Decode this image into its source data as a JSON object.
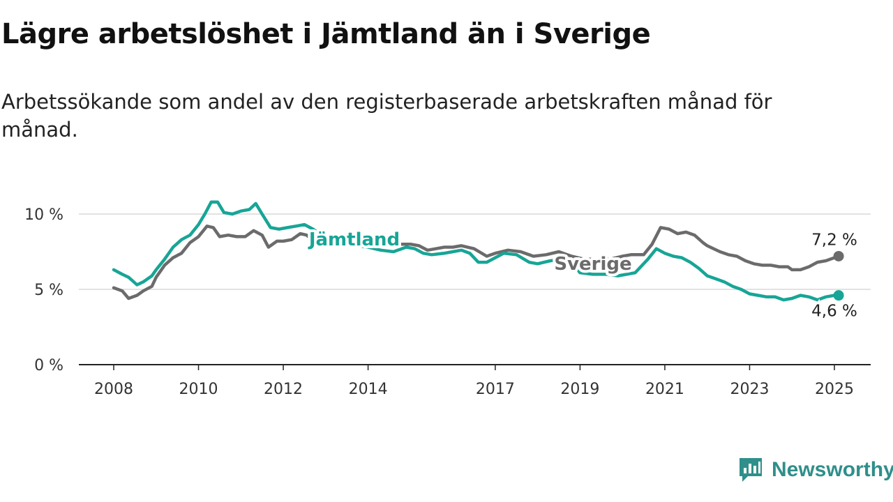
{
  "header": {
    "title": "Lägre arbetslöshet i Jämtland än i Sverige",
    "subtitle": "Arbetssökande som andel av den registerbaserade arbetskraften månad för månad."
  },
  "brand": {
    "name": "Newsworthy",
    "color": "#2f8f8a"
  },
  "chart_data": {
    "type": "line",
    "title": "Lägre arbetslöshet i Jämtland än i Sverige",
    "subtitle": "Arbetssökande som andel av den registerbaserade arbetskraften månad för månad.",
    "xlabel": "",
    "ylabel": "",
    "xlim": [
      2008,
      2025.1
    ],
    "ylim": [
      0,
      10
    ],
    "x_ticks": [
      2008,
      2010,
      2012,
      2014,
      2017,
      2019,
      2021,
      2023,
      2025
    ],
    "y_ticks": [
      {
        "value": 0,
        "label": "0 %"
      },
      {
        "value": 5,
        "label": "5 %"
      },
      {
        "value": 10,
        "label": "10 %"
      }
    ],
    "grid": true,
    "series": [
      {
        "name": "Sverige",
        "color": "#6b6b6b",
        "end_label": "7,2 %",
        "points": [
          [
            2008.0,
            5.1
          ],
          [
            2008.2,
            4.9
          ],
          [
            2008.35,
            4.4
          ],
          [
            2008.55,
            4.6
          ],
          [
            2008.7,
            4.9
          ],
          [
            2008.9,
            5.2
          ],
          [
            2009.0,
            5.8
          ],
          [
            2009.2,
            6.6
          ],
          [
            2009.4,
            7.1
          ],
          [
            2009.6,
            7.4
          ],
          [
            2009.8,
            8.1
          ],
          [
            2010.0,
            8.5
          ],
          [
            2010.2,
            9.2
          ],
          [
            2010.35,
            9.1
          ],
          [
            2010.5,
            8.5
          ],
          [
            2010.7,
            8.6
          ],
          [
            2010.9,
            8.5
          ],
          [
            2011.1,
            8.5
          ],
          [
            2011.3,
            8.9
          ],
          [
            2011.5,
            8.6
          ],
          [
            2011.65,
            7.8
          ],
          [
            2011.85,
            8.2
          ],
          [
            2012.0,
            8.2
          ],
          [
            2012.2,
            8.3
          ],
          [
            2012.4,
            8.7
          ],
          [
            2012.55,
            8.6
          ],
          [
            2012.8,
            8.0
          ],
          [
            2013.0,
            8.2
          ],
          [
            2013.3,
            8.3
          ],
          [
            2013.6,
            8.3
          ],
          [
            2014.0,
            8.1
          ],
          [
            2014.3,
            7.9
          ],
          [
            2014.6,
            8.0
          ],
          [
            2015.0,
            8.0
          ],
          [
            2015.2,
            7.9
          ],
          [
            2015.4,
            7.6
          ],
          [
            2015.6,
            7.7
          ],
          [
            2015.8,
            7.8
          ],
          [
            2016.0,
            7.8
          ],
          [
            2016.2,
            7.9
          ],
          [
            2016.5,
            7.7
          ],
          [
            2016.8,
            7.2
          ],
          [
            2017.0,
            7.4
          ],
          [
            2017.3,
            7.6
          ],
          [
            2017.6,
            7.5
          ],
          [
            2017.9,
            7.2
          ],
          [
            2018.2,
            7.3
          ],
          [
            2018.5,
            7.5
          ],
          [
            2018.8,
            7.2
          ],
          [
            2019.1,
            7.0
          ],
          [
            2019.4,
            7.0
          ],
          [
            2019.7,
            7.0
          ],
          [
            2020.0,
            7.2
          ],
          [
            2020.2,
            7.3
          ],
          [
            2020.5,
            7.3
          ],
          [
            2020.7,
            8.0
          ],
          [
            2020.9,
            9.1
          ],
          [
            2021.1,
            9.0
          ],
          [
            2021.3,
            8.7
          ],
          [
            2021.5,
            8.8
          ],
          [
            2021.7,
            8.6
          ],
          [
            2021.9,
            8.1
          ],
          [
            2022.0,
            7.9
          ],
          [
            2022.3,
            7.5
          ],
          [
            2022.5,
            7.3
          ],
          [
            2022.7,
            7.2
          ],
          [
            2022.9,
            6.9
          ],
          [
            2023.1,
            6.7
          ],
          [
            2023.3,
            6.6
          ],
          [
            2023.5,
            6.6
          ],
          [
            2023.7,
            6.5
          ],
          [
            2023.9,
            6.5
          ],
          [
            2024.0,
            6.3
          ],
          [
            2024.2,
            6.3
          ],
          [
            2024.4,
            6.5
          ],
          [
            2024.6,
            6.8
          ],
          [
            2024.8,
            6.9
          ],
          [
            2025.0,
            7.1
          ],
          [
            2025.1,
            7.2
          ]
        ]
      },
      {
        "name": "Jämtland",
        "color": "#17a596",
        "end_label": "4,6 %",
        "points": [
          [
            2008.0,
            6.3
          ],
          [
            2008.2,
            6.0
          ],
          [
            2008.35,
            5.8
          ],
          [
            2008.55,
            5.3
          ],
          [
            2008.7,
            5.5
          ],
          [
            2008.9,
            5.9
          ],
          [
            2009.0,
            6.3
          ],
          [
            2009.2,
            7.0
          ],
          [
            2009.4,
            7.8
          ],
          [
            2009.6,
            8.3
          ],
          [
            2009.8,
            8.6
          ],
          [
            2010.0,
            9.3
          ],
          [
            2010.15,
            10.0
          ],
          [
            2010.3,
            10.8
          ],
          [
            2010.45,
            10.8
          ],
          [
            2010.6,
            10.1
          ],
          [
            2010.8,
            10.0
          ],
          [
            2011.0,
            10.2
          ],
          [
            2011.2,
            10.3
          ],
          [
            2011.35,
            10.7
          ],
          [
            2011.5,
            10.0
          ],
          [
            2011.7,
            9.1
          ],
          [
            2011.9,
            9.0
          ],
          [
            2012.1,
            9.1
          ],
          [
            2012.3,
            9.2
          ],
          [
            2012.5,
            9.3
          ],
          [
            2012.7,
            9.0
          ],
          [
            2012.9,
            8.6
          ],
          [
            2013.1,
            8.2
          ],
          [
            2013.4,
            8.0
          ],
          [
            2013.7,
            7.9
          ],
          [
            2014.0,
            7.8
          ],
          [
            2014.3,
            7.6
          ],
          [
            2014.6,
            7.5
          ],
          [
            2014.9,
            7.8
          ],
          [
            2015.1,
            7.7
          ],
          [
            2015.3,
            7.4
          ],
          [
            2015.5,
            7.3
          ],
          [
            2015.8,
            7.4
          ],
          [
            2016.0,
            7.5
          ],
          [
            2016.2,
            7.6
          ],
          [
            2016.4,
            7.4
          ],
          [
            2016.6,
            6.8
          ],
          [
            2016.8,
            6.8
          ],
          [
            2017.0,
            7.1
          ],
          [
            2017.2,
            7.4
          ],
          [
            2017.5,
            7.3
          ],
          [
            2017.8,
            6.8
          ],
          [
            2018.0,
            6.7
          ],
          [
            2018.3,
            6.9
          ],
          [
            2018.6,
            7.0
          ],
          [
            2018.8,
            6.8
          ],
          [
            2019.0,
            6.1
          ],
          [
            2019.3,
            6.0
          ],
          [
            2019.6,
            6.0
          ],
          [
            2019.9,
            5.9
          ],
          [
            2020.1,
            6.0
          ],
          [
            2020.3,
            6.1
          ],
          [
            2020.6,
            7.0
          ],
          [
            2020.8,
            7.7
          ],
          [
            2021.0,
            7.4
          ],
          [
            2021.2,
            7.2
          ],
          [
            2021.4,
            7.1
          ],
          [
            2021.6,
            6.8
          ],
          [
            2021.8,
            6.4
          ],
          [
            2022.0,
            5.9
          ],
          [
            2022.2,
            5.7
          ],
          [
            2022.4,
            5.5
          ],
          [
            2022.6,
            5.2
          ],
          [
            2022.8,
            5.0
          ],
          [
            2023.0,
            4.7
          ],
          [
            2023.2,
            4.6
          ],
          [
            2023.4,
            4.5
          ],
          [
            2023.6,
            4.5
          ],
          [
            2023.8,
            4.3
          ],
          [
            2024.0,
            4.4
          ],
          [
            2024.2,
            4.6
          ],
          [
            2024.4,
            4.5
          ],
          [
            2024.6,
            4.3
          ],
          [
            2024.8,
            4.5
          ],
          [
            2025.0,
            4.6
          ],
          [
            2025.1,
            4.6
          ]
        ]
      }
    ]
  }
}
